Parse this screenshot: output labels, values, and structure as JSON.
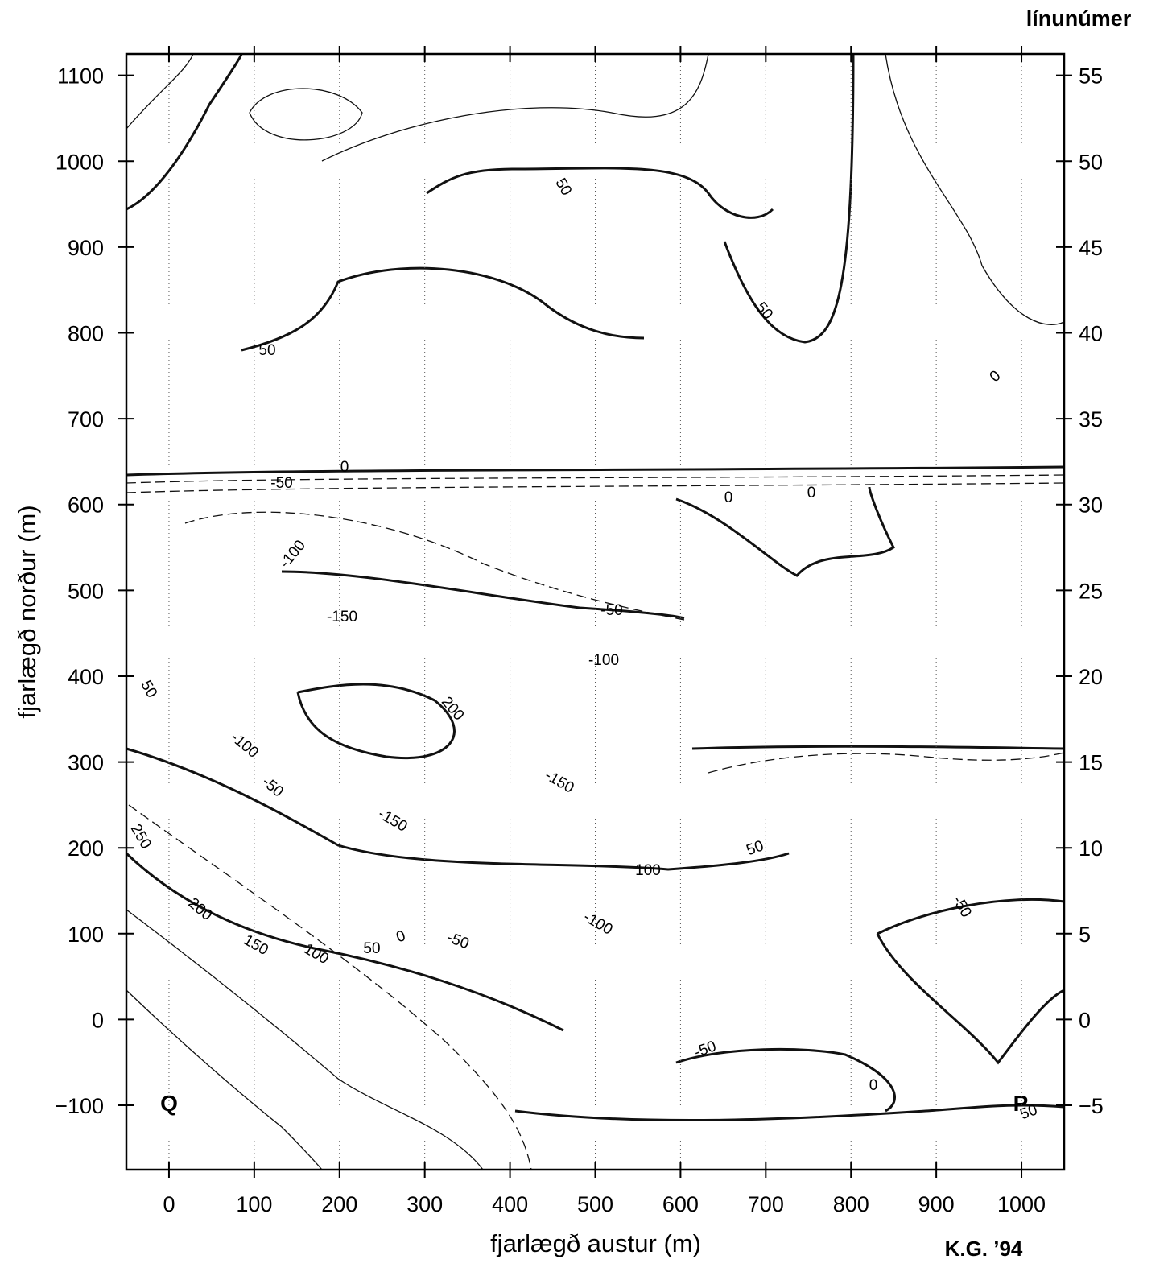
{
  "chart_data": {
    "type": "contour",
    "xlabel": "fjarlægð austur (m)",
    "ylabel": "fjarlægð norður (m)",
    "y2label": "línunúmer",
    "credit": "K.G. ’94",
    "point_labels": [
      "Q",
      "P"
    ],
    "xlim": [
      -50,
      1050
    ],
    "ylim": [
      -175,
      1125
    ],
    "y2lim": [
      -8.75,
      56.25
    ],
    "xticks": [
      0,
      100,
      200,
      300,
      400,
      500,
      600,
      700,
      800,
      900,
      1000
    ],
    "yticks": [
      {
        "value": -100,
        "label": "−100"
      },
      0,
      100,
      200,
      300,
      400,
      500,
      600,
      700,
      800,
      900,
      1000,
      1100
    ],
    "y2ticks": [
      {
        "value": -5,
        "label": "−5"
      },
      0,
      5,
      10,
      15,
      20,
      25,
      30,
      35,
      40,
      45,
      50,
      55
    ],
    "grid": "x",
    "contour_labels": [
      "50",
      "50",
      "50",
      "0",
      "-50",
      "0",
      "0",
      "-100",
      "-150",
      "-50",
      "-100",
      "200",
      "-100",
      "-50",
      "-150",
      "-150",
      "50",
      "100",
      "-100",
      "0",
      "-50",
      "50",
      "100",
      "150",
      "200",
      "250",
      "-50",
      "-50",
      "0",
      "50",
      "0",
      "50"
    ]
  }
}
